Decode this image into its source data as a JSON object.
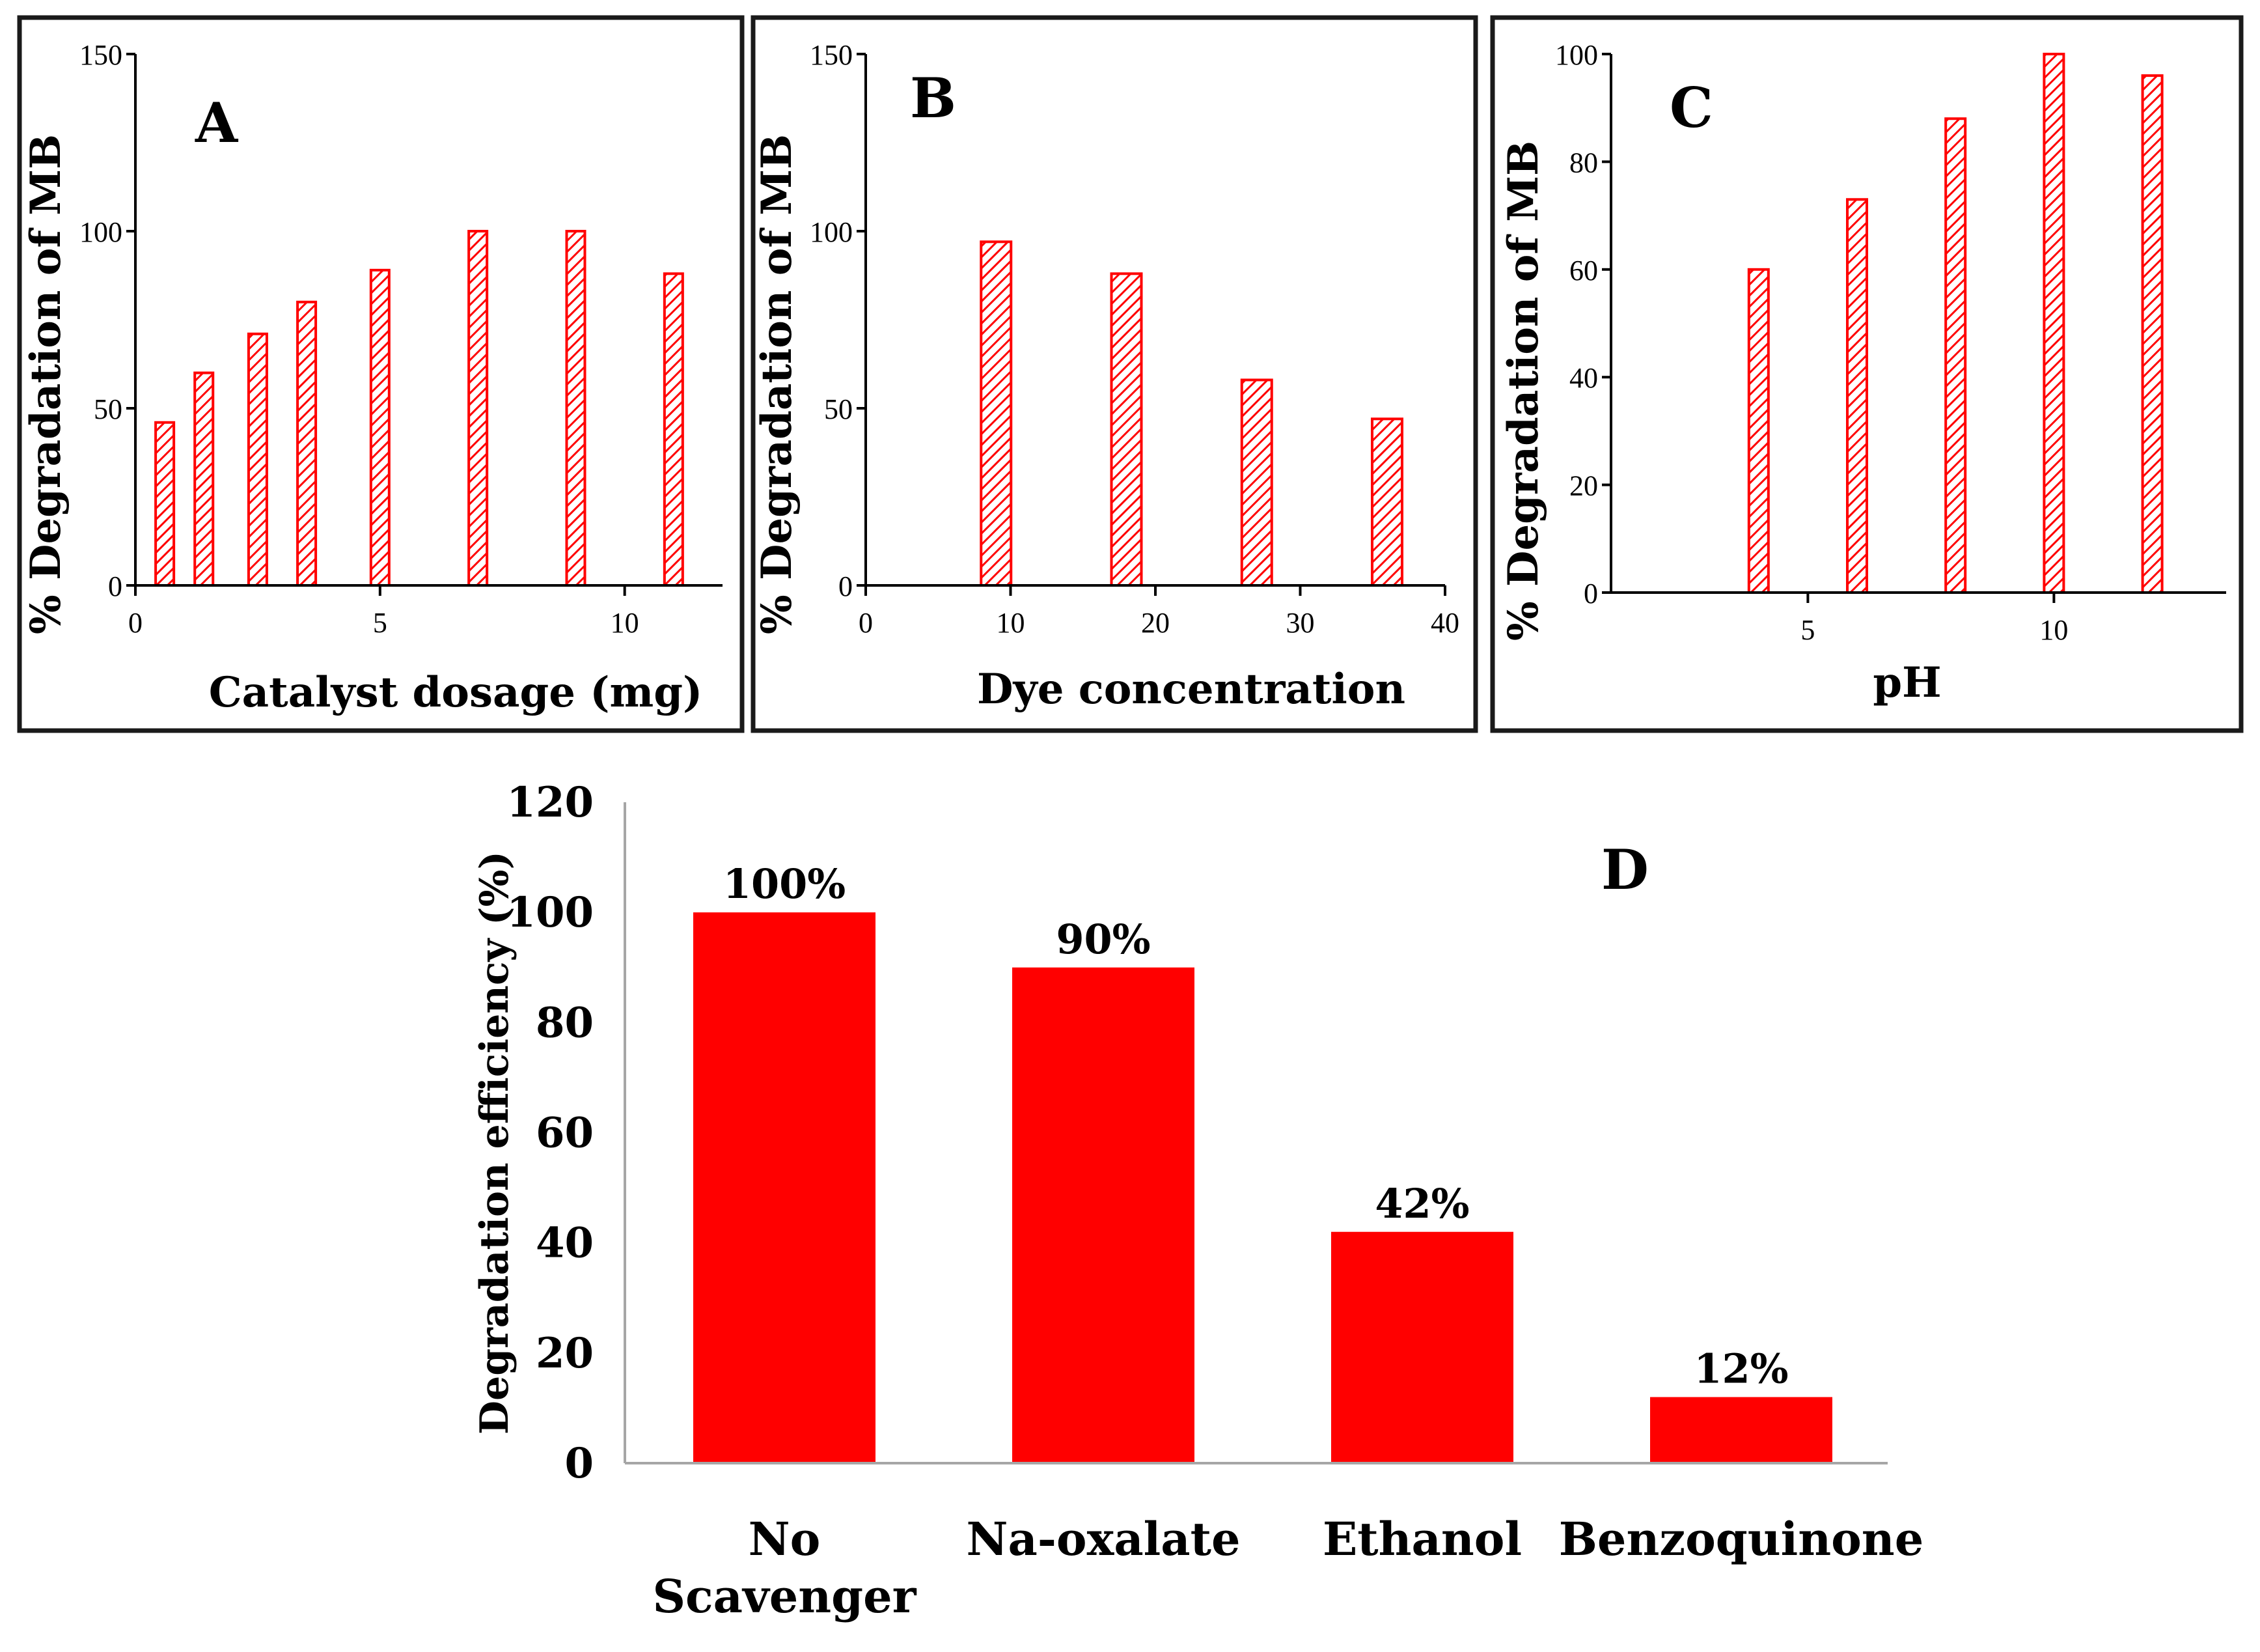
{
  "colors": {
    "bar": "#ff0000",
    "axis": "#000000",
    "frame": "#1a1a1a",
    "axisD": "#a6a6a6"
  },
  "chart_data": [
    {
      "panel": "A",
      "type": "bar",
      "style": "hatched",
      "x": [
        0.6,
        1.4,
        2.5,
        3.5,
        5,
        7,
        9,
        11
      ],
      "values": [
        46,
        60,
        71,
        80,
        89,
        100,
        100,
        88
      ],
      "xlabel": "Catalyst dosage (mg)",
      "ylabel": "% Degradation of MB",
      "xlim": [
        0,
        12
      ],
      "ylim": [
        0,
        150
      ],
      "xticks": [
        0,
        5,
        10
      ],
      "yticks": [
        0,
        50,
        100,
        150
      ],
      "xtick_labels": [
        "0",
        "5",
        "10"
      ],
      "ytick_labels": [
        "0",
        "50",
        "100",
        "150"
      ]
    },
    {
      "panel": "B",
      "type": "bar",
      "style": "hatched",
      "x": [
        9,
        18,
        27,
        36
      ],
      "values": [
        97,
        88,
        58,
        47
      ],
      "xlabel": "Dye concentration",
      "ylabel": "% Degradation of MB",
      "xlim": [
        0,
        40
      ],
      "ylim": [
        0,
        150
      ],
      "xticks": [
        0,
        10,
        20,
        30,
        40
      ],
      "yticks": [
        0,
        50,
        100,
        150
      ],
      "xtick_labels": [
        "0",
        "10",
        "20",
        "30",
        "40"
      ],
      "ytick_labels": [
        "0",
        "50",
        "100",
        "150"
      ]
    },
    {
      "panel": "C",
      "type": "bar",
      "style": "hatched",
      "x": [
        4,
        6,
        8,
        10,
        12
      ],
      "values": [
        60,
        73,
        88,
        100,
        96
      ],
      "xlabel": "pH",
      "ylabel": "% Degradation of MB",
      "xlim": [
        1,
        13.5
      ],
      "ylim": [
        0,
        100
      ],
      "xticks": [
        5,
        10
      ],
      "yticks": [
        0,
        20,
        40,
        60,
        80,
        100
      ],
      "xtick_labels": [
        "5",
        "10"
      ],
      "ytick_labels": [
        "0",
        "20",
        "40",
        "60",
        "80",
        "100"
      ]
    },
    {
      "panel": "D",
      "type": "bar",
      "style": "solid",
      "categories": [
        [
          "No",
          "Scavenger"
        ],
        [
          "Na-oxalate"
        ],
        [
          "Ethanol"
        ],
        [
          "Benzoquinone"
        ]
      ],
      "values": [
        100,
        90,
        42,
        12
      ],
      "data_labels": [
        "100%",
        "90%",
        "42%",
        "12%"
      ],
      "xlabel": "",
      "ylabel": "Degradation efficiency (%)",
      "ylim": [
        0,
        120
      ],
      "yticks": [
        0,
        20,
        40,
        60,
        80,
        100,
        120
      ],
      "ytick_labels": [
        "0",
        "20",
        "40",
        "60",
        "80",
        "100",
        "120"
      ]
    }
  ]
}
